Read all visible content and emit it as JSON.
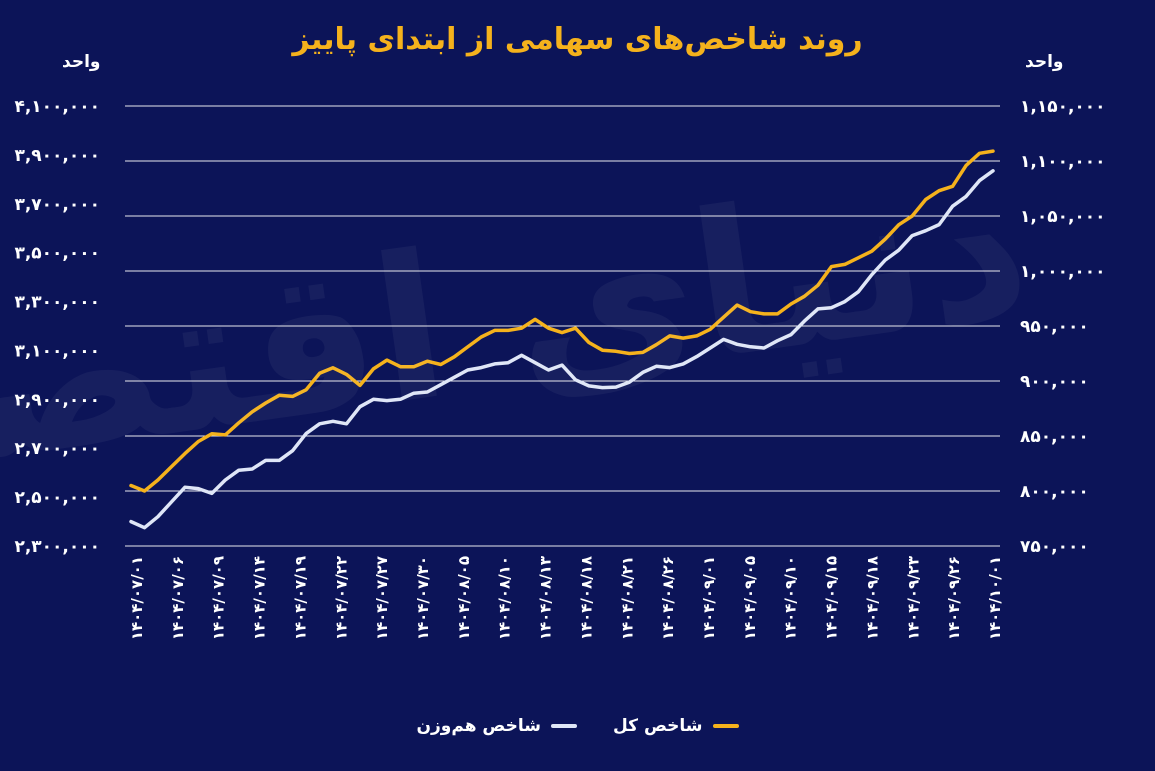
{
  "colors": {
    "background": "#0c1458",
    "total_index": "#f5b21c",
    "equal_weight_index": "#dfe6f7",
    "grid": "#ffffff"
  },
  "watermark": "دنیای اقتصاد",
  "chart_data": {
    "type": "line",
    "title": "روند شاخص‌های سهامی از ابتدای پاییز",
    "left_axis": {
      "unit": "واحد",
      "ylim": [
        2300000,
        4100000
      ],
      "ticks": [
        "۴,۱۰۰,۰۰۰",
        "۳,۹۰۰,۰۰۰",
        "۳,۷۰۰,۰۰۰",
        "۳,۵۰۰,۰۰۰",
        "۳,۳۰۰,۰۰۰",
        "۳,۱۰۰,۰۰۰",
        "۲,۹۰۰,۰۰۰",
        "۲,۷۰۰,۰۰۰",
        "۲,۵۰۰,۰۰۰",
        "۲,۳۰۰,۰۰۰"
      ]
    },
    "right_axis": {
      "unit": "واحد",
      "ylim": [
        750000,
        1150000
      ],
      "ticks": [
        "۱,۱۵۰,۰۰۰",
        "۱,۱۰۰,۰۰۰",
        "۱,۰۵۰,۰۰۰",
        "۱,۰۰۰,۰۰۰",
        "۹۵۰,۰۰۰",
        "۹۰۰,۰۰۰",
        "۸۵۰,۰۰۰",
        "۸۰۰,۰۰۰",
        "۷۵۰,۰۰۰"
      ]
    },
    "x_tick_labels": [
      "۱۴۰۴/۰۷/۰۱",
      "۱۴۰۴/۰۷/۰۶",
      "۱۴۰۴/۰۷/۰۹",
      "۱۴۰۴/۰۷/۱۴",
      "۱۴۰۴/۰۷/۱۹",
      "۱۴۰۴/۰۷/۲۲",
      "۱۴۰۴/۰۷/۲۷",
      "۱۴۰۴/۰۷/۳۰",
      "۱۴۰۴/۰۸/۰۵",
      "۱۴۰۴/۰۸/۱۰",
      "۱۴۰۴/۰۸/۱۳",
      "۱۴۰۴/۰۸/۱۸",
      "۱۴۰۴/۰۸/۲۱",
      "۱۴۰۴/۰۸/۲۶",
      "۱۴۰۴/۰۹/۰۱",
      "۱۴۰۴/۰۹/۰۵",
      "۱۴۰۴/۰۹/۱۰",
      "۱۴۰۴/۰۹/۱۵",
      "۱۴۰۴/۰۹/۱۸",
      "۱۴۰۴/۰۹/۲۳",
      "۱۴۰۴/۰۹/۲۶",
      "۱۴۰۴/۱۰/۰۱"
    ],
    "grid": true,
    "legend_position": "bottom-center",
    "series": [
      {
        "name": "شاخص کل",
        "axis": "right",
        "color": "#f5b21c",
        "values": [
          805000,
          800000,
          810000,
          822000,
          834000,
          845000,
          852000,
          851000,
          862000,
          872000,
          880000,
          887000,
          886000,
          892000,
          907000,
          912000,
          906000,
          896000,
          911000,
          919000,
          913000,
          913000,
          918000,
          915000,
          922000,
          931000,
          940000,
          946000,
          946000,
          948000,
          956000,
          948000,
          944000,
          948000,
          935000,
          928000,
          927000,
          925000,
          926000,
          933000,
          941000,
          939000,
          941000,
          947000,
          958000,
          969000,
          963000,
          961000,
          961000,
          970000,
          977000,
          987000,
          1004000,
          1006000,
          1012000,
          1018000,
          1029000,
          1042000,
          1050000,
          1065000,
          1073000,
          1077000,
          1096000,
          1107000,
          1109000
        ],
        "left_axis_scale": false
      },
      {
        "name": "شاخص هم‌وزن",
        "axis": "left",
        "color": "#dfe6f7",
        "values": [
          2400000,
          2375000,
          2420000,
          2480000,
          2540000,
          2535000,
          2515000,
          2570000,
          2610000,
          2615000,
          2650000,
          2650000,
          2690000,
          2760000,
          2800000,
          2810000,
          2800000,
          2870000,
          2900000,
          2895000,
          2900000,
          2925000,
          2930000,
          2960000,
          2990000,
          3020000,
          3030000,
          3045000,
          3050000,
          3080000,
          3050000,
          3020000,
          3040000,
          2980000,
          2955000,
          2948000,
          2950000,
          2970000,
          3010000,
          3035000,
          3030000,
          3045000,
          3075000,
          3110000,
          3145000,
          3125000,
          3115000,
          3110000,
          3140000,
          3165000,
          3220000,
          3270000,
          3275000,
          3300000,
          3340000,
          3410000,
          3470000,
          3510000,
          3570000,
          3590000,
          3615000,
          3690000,
          3730000,
          3795000,
          3835000
        ]
      }
    ]
  },
  "legend": {
    "total_label": "شاخص کل",
    "equal_label": "شاخص هم‌وزن"
  }
}
